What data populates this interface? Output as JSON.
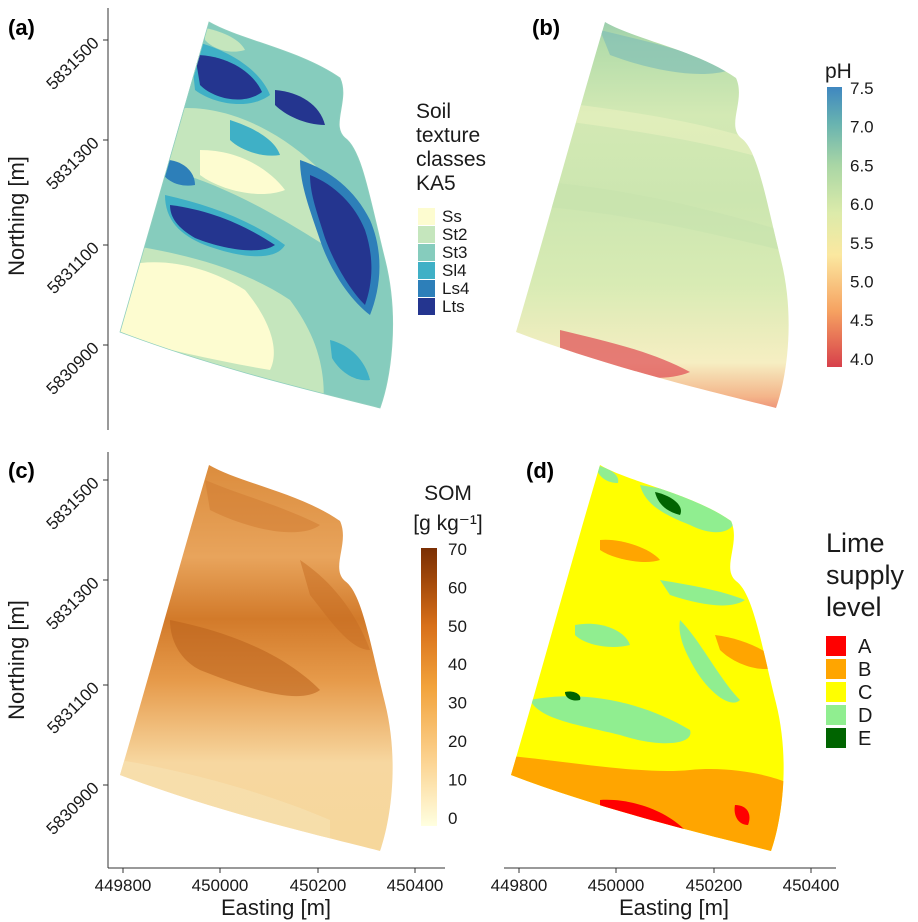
{
  "panels": [
    {
      "tag": "(a)",
      "legend_title_lines": [
        "Soil",
        "texture",
        "classes",
        "KA5"
      ],
      "legend_items": [
        "Ss",
        "St2",
        "St3",
        "Sl4",
        "Ls4",
        "Lts"
      ]
    },
    {
      "tag": "(b)",
      "legend_title": "pH",
      "legend_ticks": [
        "7.5",
        "7.0",
        "6.5",
        "6.0",
        "5.5",
        "5.0",
        "4.5",
        "4.0"
      ]
    },
    {
      "tag": "(c)",
      "legend_title_lines": [
        "SOM",
        "[g kg⁻¹]"
      ],
      "legend_ticks": [
        "70",
        "60",
        "50",
        "40",
        "30",
        "20",
        "10",
        "0"
      ]
    },
    {
      "tag": "(d)",
      "legend_title_lines": [
        "Lime",
        "supply",
        "level"
      ],
      "legend_items": [
        "A",
        "B",
        "C",
        "D",
        "E"
      ]
    }
  ],
  "axes": {
    "x_title": "Easting [m]",
    "y_title": "Northing [m]",
    "x_ticks": [
      "449800",
      "450000",
      "450200",
      "450400"
    ],
    "y_ticks": [
      "5831500",
      "5831300",
      "5831100",
      "5830900"
    ]
  },
  "colors": {
    "texture": {
      "Ss": "#fdfcd0",
      "St2": "#c5e6bd",
      "St3": "#86ccbd",
      "Sl4": "#3fb0c6",
      "Ls4": "#2d7fb9",
      "Lts": "#24358f"
    },
    "lime": {
      "A": "#ff0000",
      "B": "#ffa500",
      "C": "#ffff00",
      "D": "#90ee90",
      "E": "#006400"
    },
    "ph_scale": [
      "#d7404b",
      "#f6a261",
      "#fbe8a0",
      "#dcebaa",
      "#a9d6a5",
      "#68b3b0",
      "#3f87c0"
    ],
    "som_scale": [
      "#ffffe0",
      "#fbd08c",
      "#f2a33c",
      "#d8701a",
      "#a3490a",
      "#7a2f04"
    ]
  }
}
